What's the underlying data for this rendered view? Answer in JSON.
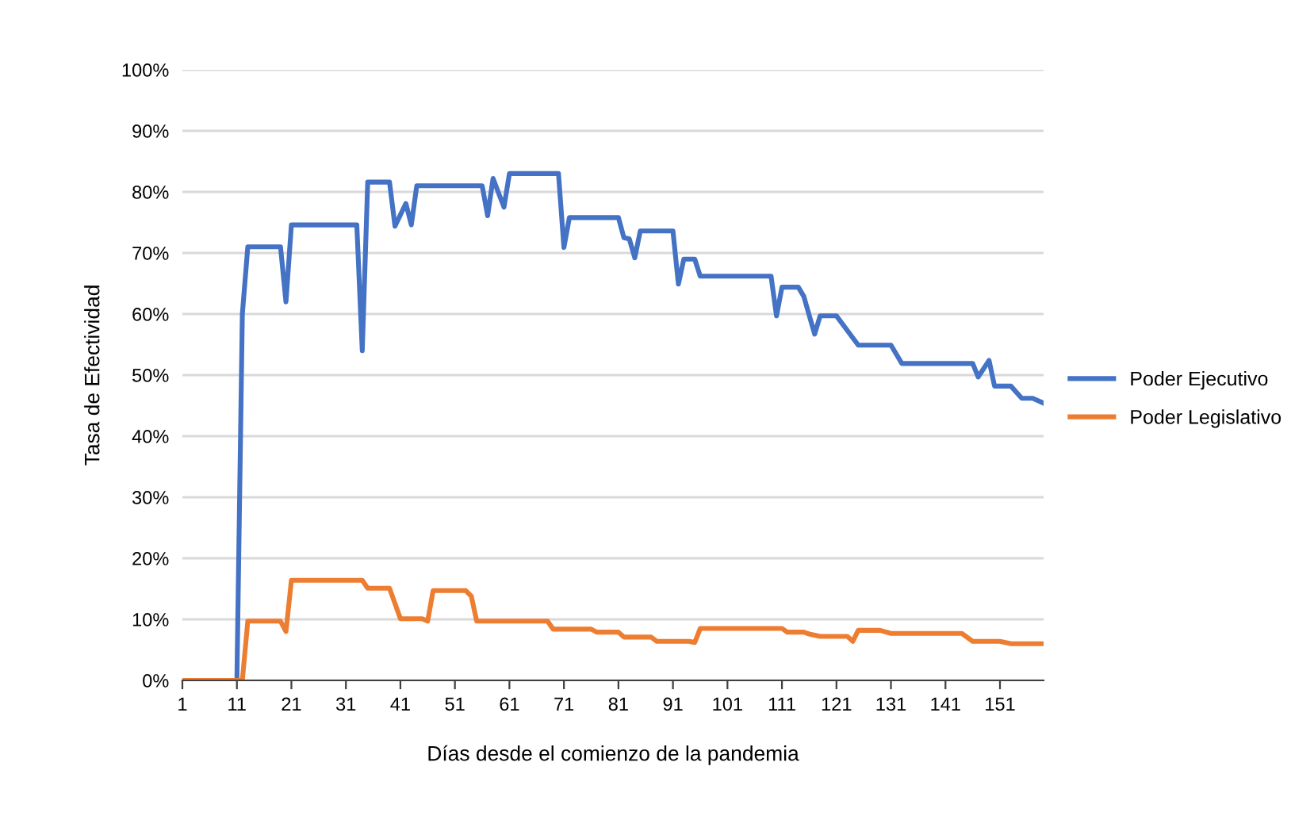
{
  "chart_data": {
    "type": "line",
    "xlabel": "Días desde el comienzo de la pandemia",
    "ylabel": "Tasa de Efectividad",
    "xlim": [
      1,
      159
    ],
    "xticks": [
      1,
      11,
      21,
      31,
      41,
      51,
      61,
      71,
      81,
      91,
      101,
      111,
      121,
      131,
      141,
      151
    ],
    "ylim": [
      0,
      100
    ],
    "yticks": [
      {
        "value": 0,
        "label": "0%"
      },
      {
        "value": 10,
        "label": "10%"
      },
      {
        "value": 20,
        "label": "20%"
      },
      {
        "value": 30,
        "label": "30%"
      },
      {
        "value": 40,
        "label": "40%"
      },
      {
        "value": 50,
        "label": "50%"
      },
      {
        "value": 60,
        "label": "60%"
      },
      {
        "value": 70,
        "label": "70%"
      },
      {
        "value": 80,
        "label": "80%"
      },
      {
        "value": 90,
        "label": "90%"
      },
      {
        "value": 100,
        "label": "100%"
      }
    ],
    "grid": "y",
    "legend": "right",
    "marker": "none",
    "line_style": "solid",
    "series": [
      {
        "name": "Poder Ejecutivo",
        "color": "#4472c4",
        "x": [
          1,
          11,
          12,
          13,
          19,
          20,
          21,
          33,
          34,
          35,
          39,
          40,
          42,
          43,
          44,
          56,
          57,
          58,
          60,
          61,
          70,
          71,
          72,
          81,
          82,
          83,
          84,
          85,
          91,
          92,
          93,
          95,
          96,
          109,
          110,
          111,
          114,
          115,
          117,
          118,
          121,
          125,
          131,
          133,
          146,
          147,
          149,
          150,
          153,
          155,
          157,
          159
        ],
        "values": [
          0,
          0,
          60,
          71,
          71,
          62,
          74.6,
          74.6,
          54,
          81.6,
          81.6,
          74.4,
          78.1,
          74.6,
          81,
          81,
          76.1,
          82.2,
          77.5,
          83,
          83,
          70.9,
          75.8,
          75.8,
          72.5,
          72.3,
          69.2,
          73.6,
          73.6,
          64.9,
          69,
          69,
          66.2,
          66.2,
          59.7,
          64.4,
          64.4,
          62.9,
          56.7,
          59.7,
          59.7,
          54.9,
          54.9,
          51.9,
          51.9,
          49.7,
          52.4,
          48.2,
          48.2,
          46.2,
          46.2,
          45.4
        ]
      },
      {
        "name": "Poder Legislativo",
        "color": "#ed7d31",
        "x": [
          1,
          12,
          13,
          19,
          20,
          21,
          34,
          35,
          39,
          41,
          45,
          46,
          47,
          53,
          54,
          55,
          68,
          69,
          76,
          77,
          81,
          82,
          87,
          88,
          94,
          95,
          96,
          111,
          112,
          115,
          116,
          118,
          123,
          124,
          125,
          129,
          131,
          144,
          146,
          151,
          153,
          159
        ],
        "values": [
          0,
          0,
          9.7,
          9.7,
          8,
          16.4,
          16.4,
          15.1,
          15.1,
          10.1,
          10.1,
          9.7,
          14.7,
          14.7,
          13.8,
          9.7,
          9.7,
          8.4,
          8.4,
          7.9,
          7.9,
          7.1,
          7.1,
          6.4,
          6.4,
          6.2,
          8.5,
          8.5,
          7.9,
          7.9,
          7.6,
          7.2,
          7.2,
          6.4,
          8.2,
          8.2,
          7.7,
          7.7,
          6.4,
          6.4,
          6,
          6
        ]
      }
    ]
  }
}
